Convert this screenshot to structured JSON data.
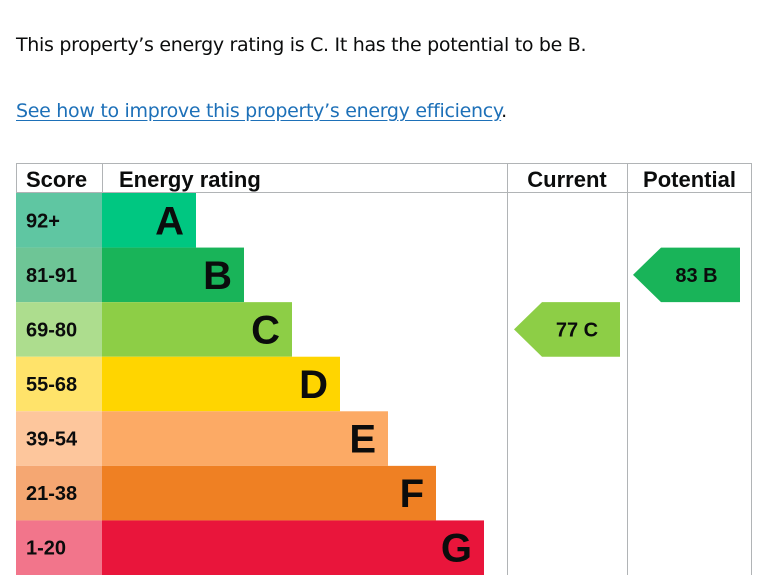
{
  "intro": {
    "text": "This property’s energy rating is C. It has the potential to be B.",
    "link_label": "See how to improve this property’s energy efficiency",
    "link_suffix": ".",
    "link_color": "#1d70b8"
  },
  "chart_data": {
    "type": "bar",
    "headers": {
      "score": "Score",
      "rating": "Energy rating",
      "current": "Current",
      "potential": "Potential"
    },
    "bands": [
      {
        "letter": "A",
        "range": "92+",
        "bar_color": "#00c781",
        "score_color": "#5fc6a2"
      },
      {
        "letter": "B",
        "range": "81-91",
        "bar_color": "#19b459",
        "score_color": "#6ec596"
      },
      {
        "letter": "C",
        "range": "69-80",
        "bar_color": "#8dce46",
        "score_color": "#addd8e"
      },
      {
        "letter": "D",
        "range": "55-68",
        "bar_color": "#ffd500",
        "score_color": "#ffe36a"
      },
      {
        "letter": "E",
        "range": "39-54",
        "bar_color": "#fcaa65",
        "score_color": "#fdc69c"
      },
      {
        "letter": "F",
        "range": "21-38",
        "bar_color": "#ef8023",
        "score_color": "#f5a772"
      },
      {
        "letter": "G",
        "range": "1-20",
        "bar_color": "#e9153b",
        "score_color": "#f2758b"
      }
    ],
    "current": {
      "score": 77,
      "letter": "C",
      "label": "77  C",
      "color": "#8dce46"
    },
    "potential": {
      "score": 83,
      "letter": "B",
      "label": "83  B",
      "color": "#19b459"
    }
  }
}
